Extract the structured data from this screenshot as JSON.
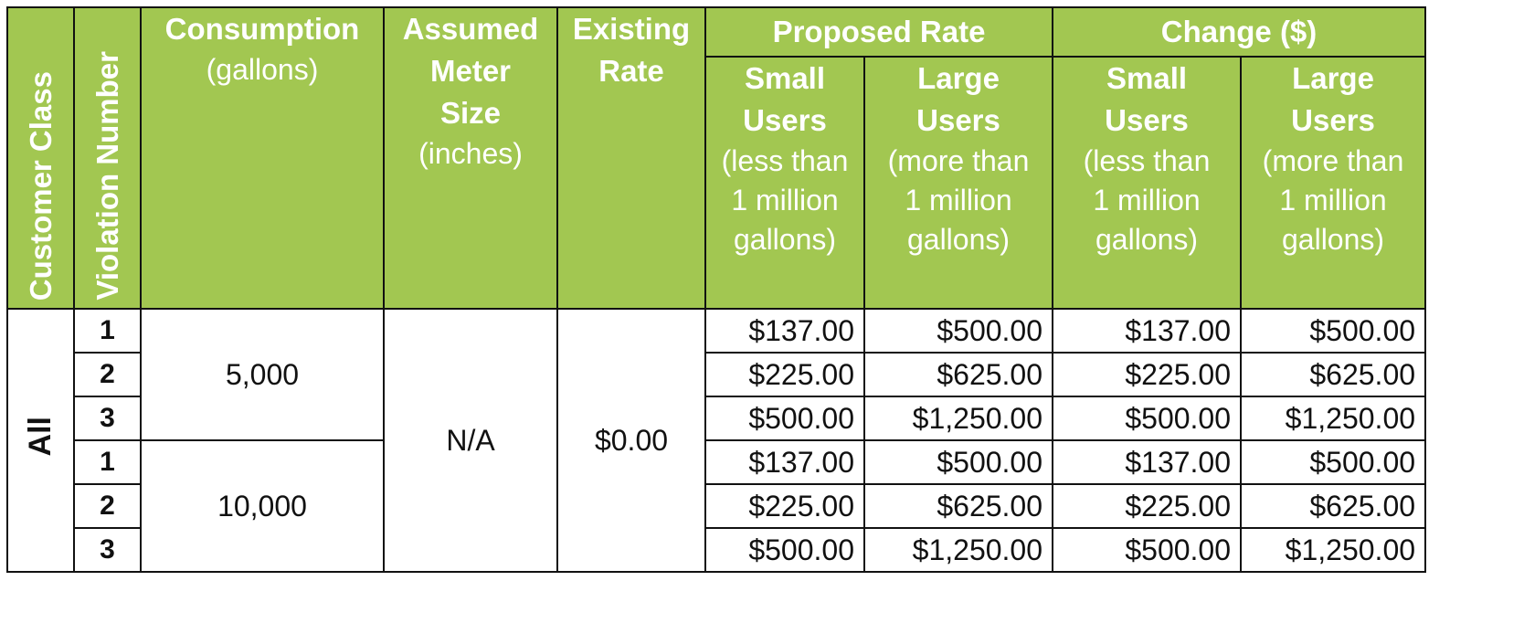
{
  "header": {
    "customer_class": "Customer Class",
    "violation_number": "Violation Number",
    "consumption_title": "Consumption",
    "consumption_unit": "(gallons)",
    "meter_title_1": "Assumed",
    "meter_title_2": "Meter",
    "meter_title_3": "Size",
    "meter_unit": "(inches)",
    "existing_rate_1": "Existing",
    "existing_rate_2": "Rate",
    "proposed_rate": "Proposed Rate",
    "change": "Change ($)",
    "small_users_1": "Small",
    "small_users_2": "Users",
    "small_users_note_1": "(less than",
    "small_users_note_2": "1 million",
    "small_users_note_3": "gallons)",
    "large_users_1": "Large",
    "large_users_2": "Users",
    "large_users_note_1": "(more than",
    "large_users_note_2": "1 million",
    "large_users_note_3": "gallons)"
  },
  "customer_class_value": "All",
  "meter_size_value": "N/A",
  "existing_rate_value": "$0.00",
  "groups": [
    {
      "consumption": "5,000",
      "rows": [
        {
          "violation": "1",
          "proposed_small": "$137.00",
          "proposed_large": "$500.00",
          "change_small": "$137.00",
          "change_large": "$500.00"
        },
        {
          "violation": "2",
          "proposed_small": "$225.00",
          "proposed_large": "$625.00",
          "change_small": "$225.00",
          "change_large": "$625.00"
        },
        {
          "violation": "3",
          "proposed_small": "$500.00",
          "proposed_large": "$1,250.00",
          "change_small": "$500.00",
          "change_large": "$1,250.00"
        }
      ]
    },
    {
      "consumption": "10,000",
      "rows": [
        {
          "violation": "1",
          "proposed_small": "$137.00",
          "proposed_large": "$500.00",
          "change_small": "$137.00",
          "change_large": "$500.00"
        },
        {
          "violation": "2",
          "proposed_small": "$225.00",
          "proposed_large": "$625.00",
          "change_small": "$225.00",
          "change_large": "$625.00"
        },
        {
          "violation": "3",
          "proposed_small": "$500.00",
          "proposed_large": "$1,250.00",
          "change_small": "$500.00",
          "change_large": "$1,250.00"
        }
      ]
    }
  ]
}
